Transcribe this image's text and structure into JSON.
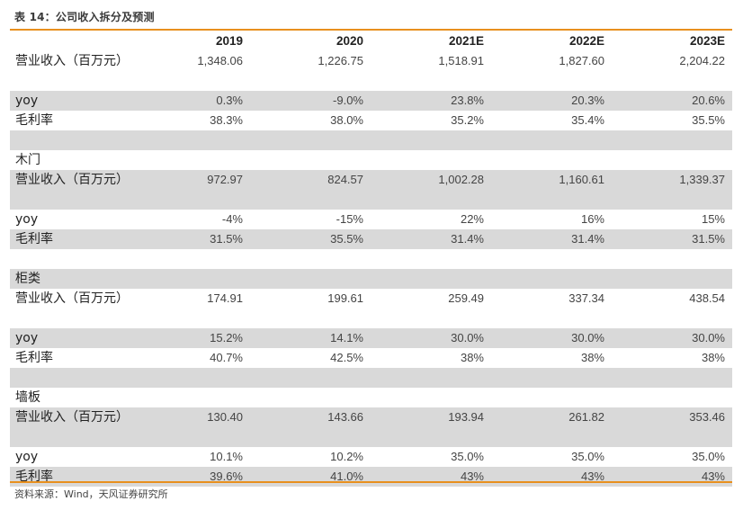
{
  "title": "表 14：公司收入拆分及预测",
  "header": [
    "",
    "2019",
    "2020",
    "2021E",
    "2022E",
    "2023E"
  ],
  "rows": [
    {
      "label": "营业收入（百万元）",
      "values": [
        "1,348.06",
        "1,226.75",
        "1,518.91",
        "1,827.60",
        "2,204.22"
      ],
      "kind": "tall",
      "shade": false
    },
    {
      "label": "yoy",
      "values": [
        "0.3%",
        "-9.0%",
        "23.8%",
        "20.3%",
        "20.6%"
      ],
      "kind": "single",
      "shade": true
    },
    {
      "label": "毛利率",
      "values": [
        "38.3%",
        "38.0%",
        "35.2%",
        "35.4%",
        "35.5%"
      ],
      "kind": "single",
      "shade": false
    },
    {
      "label": "",
      "values": [
        "",
        "",
        "",
        "",
        ""
      ],
      "kind": "blank",
      "shade": true
    },
    {
      "label": "木门",
      "values": [
        "",
        "",
        "",
        "",
        ""
      ],
      "kind": "section",
      "shade": false
    },
    {
      "label": "营业收入（百万元）",
      "values": [
        "972.97",
        "824.57",
        "1,002.28",
        "1,160.61",
        "1,339.37"
      ],
      "kind": "tall",
      "shade": true
    },
    {
      "label": "yoy",
      "values": [
        "-4%",
        "-15%",
        "22%",
        "16%",
        "15%"
      ],
      "kind": "single",
      "shade": false
    },
    {
      "label": "毛利率",
      "values": [
        "31.5%",
        "35.5%",
        "31.4%",
        "31.4%",
        "31.5%"
      ],
      "kind": "single",
      "shade": true
    },
    {
      "label": "",
      "values": [
        "",
        "",
        "",
        "",
        ""
      ],
      "kind": "blank",
      "shade": false
    },
    {
      "label": "柜类",
      "values": [
        "",
        "",
        "",
        "",
        ""
      ],
      "kind": "section",
      "shade": true
    },
    {
      "label": "营业收入（百万元）",
      "values": [
        "174.91",
        "199.61",
        "259.49",
        "337.34",
        "438.54"
      ],
      "kind": "tall",
      "shade": false
    },
    {
      "label": "yoy",
      "values": [
        "15.2%",
        "14.1%",
        "30.0%",
        "30.0%",
        "30.0%"
      ],
      "kind": "single",
      "shade": true
    },
    {
      "label": "毛利率",
      "values": [
        "40.7%",
        "42.5%",
        "38%",
        "38%",
        "38%"
      ],
      "kind": "single",
      "shade": false
    },
    {
      "label": "",
      "values": [
        "",
        "",
        "",
        "",
        ""
      ],
      "kind": "blank",
      "shade": true
    },
    {
      "label": "墙板",
      "values": [
        "",
        "",
        "",
        "",
        ""
      ],
      "kind": "section",
      "shade": false
    },
    {
      "label": "营业收入（百万元）",
      "values": [
        "130.40",
        "143.66",
        "193.94",
        "261.82",
        "353.46"
      ],
      "kind": "tall",
      "shade": true
    },
    {
      "label": "yoy",
      "values": [
        "10.1%",
        "10.2%",
        "35.0%",
        "35.0%",
        "35.0%"
      ],
      "kind": "single",
      "shade": false
    },
    {
      "label": "毛利率",
      "values": [
        "39.6%",
        "41.0%",
        "43%",
        "43%",
        "43%"
      ],
      "kind": "single",
      "shade": true
    }
  ],
  "source": "资料来源：Wind，天风证券研究所"
}
